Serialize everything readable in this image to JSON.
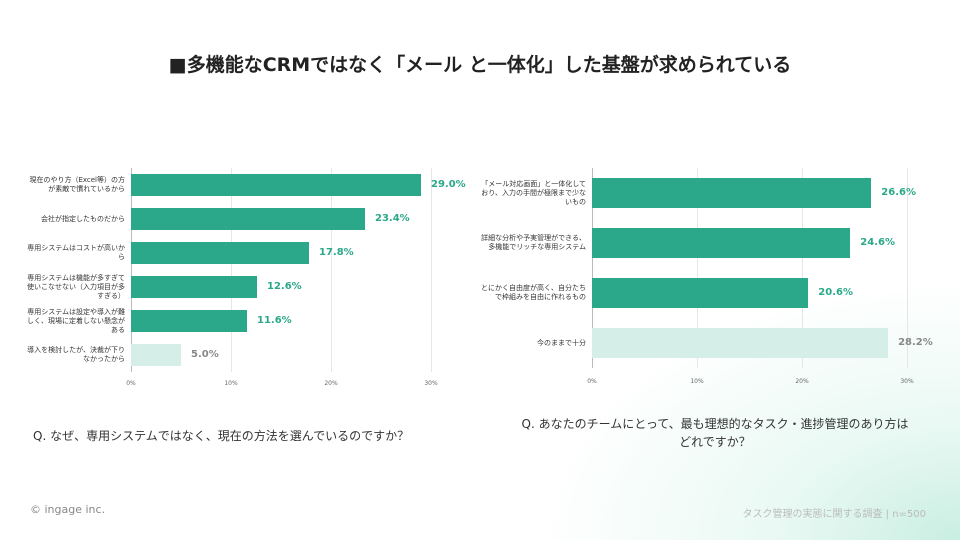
{
  "title": "■多機能なCRMではなく「メール と一体化」した基盤が求められている",
  "footer_left": "© ingage inc.",
  "footer_right": "タスク管理の実態に関する調査 | n=500",
  "chart_data": [
    {
      "type": "barh",
      "caption": "Q. なぜ、専用システムではなく、現在の方法を選んでいるのですか？",
      "categories": [
        "現在のやり方（Excel等）の方が素敵で慣れているから",
        "会社が指定したものだから",
        "専用システムはコストが高いから",
        "専用システムは機能が多すぎて使いこなせない（入力項目が多すぎる）",
        "専用システムは設定や導入が難しく、現場に定着しない懸念がある",
        "導入を検討したが、決裁が下りなかったから"
      ],
      "values": [
        29.0,
        23.4,
        17.8,
        12.6,
        11.6,
        5.0
      ],
      "value_labels": [
        "29.0%",
        "23.4%",
        "17.8%",
        "12.6%",
        "11.6%",
        "5.0%"
      ],
      "colors": [
        "#2aa889",
        "#2aa889",
        "#2aa889",
        "#2aa889",
        "#2aa889",
        "#d5efe8"
      ],
      "xlim": [
        0,
        30
      ],
      "xticks": [
        {
          "value": 0,
          "label": "0%"
        },
        {
          "value": 10,
          "label": "10%"
        },
        {
          "value": 20,
          "label": "20%"
        },
        {
          "value": 30,
          "label": "30%"
        }
      ],
      "grid": true
    },
    {
      "type": "barh",
      "caption": "Q. あなたのチームにとって、最も理想的なタスク・進捗管理のあり方はどれですか？",
      "categories": [
        "「メール対応画面」と一体化しており、入力の手間が極限まで少ないもの",
        "詳細な分析や予実管理ができる、多機能でリッチな専用システム",
        "とにかく自由度が高く、自分たちで枠組みを自由に作れるもの",
        "今のままで十分"
      ],
      "values": [
        26.6,
        24.6,
        20.6,
        28.2
      ],
      "value_labels": [
        "26.6%",
        "24.6%",
        "20.6%",
        "28.2%"
      ],
      "colors": [
        "#2aa889",
        "#2aa889",
        "#2aa889",
        "#d5efe8"
      ],
      "xlim": [
        0,
        30
      ],
      "xticks": [
        {
          "value": 0,
          "label": "0%"
        },
        {
          "value": 10,
          "label": "10%"
        },
        {
          "value": 20,
          "label": "20%"
        },
        {
          "value": 30,
          "label": "30%"
        }
      ],
      "grid": true
    }
  ]
}
